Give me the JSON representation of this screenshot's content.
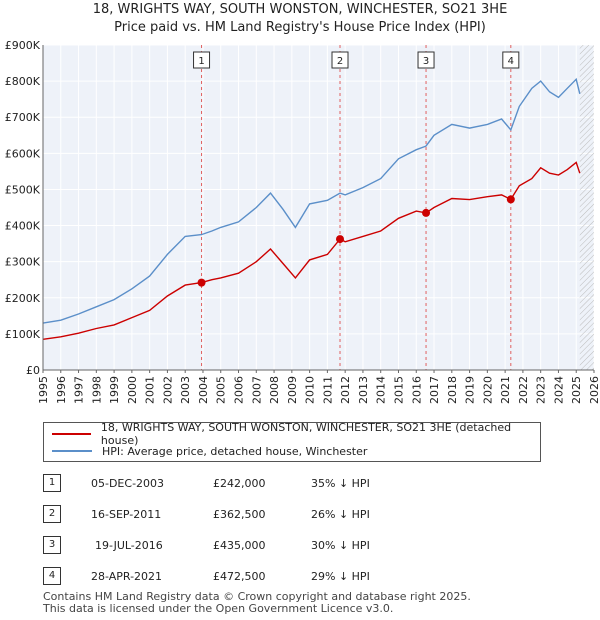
{
  "chart_data": {
    "type": "line",
    "title": "18, WRIGHTS WAY, SOUTH WONSTON, WINCHESTER, SO21 3HE",
    "subtitle": "Price paid vs. HM Land Registry's House Price Index (HPI)",
    "xlabel": "",
    "ylabel": "",
    "xlim": [
      1995,
      2026
    ],
    "ylim": [
      0,
      900000
    ],
    "y_ticks": [
      0,
      100000,
      200000,
      300000,
      400000,
      500000,
      600000,
      700000,
      800000,
      900000
    ],
    "y_tick_labels": [
      "£0",
      "£100K",
      "£200K",
      "£300K",
      "£400K",
      "£500K",
      "£600K",
      "£700K",
      "£800K",
      "£900K"
    ],
    "x_ticks": [
      1995,
      1996,
      1997,
      1998,
      1999,
      2000,
      2001,
      2002,
      2003,
      2004,
      2005,
      2006,
      2007,
      2008,
      2009,
      2010,
      2011,
      2012,
      2013,
      2014,
      2015,
      2016,
      2017,
      2018,
      2019,
      2020,
      2021,
      2022,
      2023,
      2024,
      2025,
      2026
    ],
    "grid": true,
    "legend_position": "below",
    "series": [
      {
        "name": "18, WRIGHTS WAY, SOUTH WONSTON, WINCHESTER, SO21 3HE (detached house)",
        "color": "#cc0000",
        "x": [
          1995.0,
          1996.0,
          1997.0,
          1998.0,
          1999.0,
          2000.0,
          2001.0,
          2002.0,
          2003.0,
          2003.92,
          2004.5,
          2005.0,
          2006.0,
          2007.0,
          2007.8,
          2008.5,
          2009.2,
          2010.0,
          2011.0,
          2011.71,
          2012.0,
          2013.0,
          2014.0,
          2015.0,
          2016.0,
          2016.55,
          2017.0,
          2018.0,
          2019.0,
          2020.0,
          2020.8,
          2021.32,
          2021.8,
          2022.5,
          2023.0,
          2023.5,
          2024.0,
          2024.5,
          2025.0,
          2025.2
        ],
        "values": [
          85000,
          92000,
          102000,
          115000,
          125000,
          145000,
          165000,
          205000,
          235000,
          242000,
          250000,
          255000,
          268000,
          300000,
          335000,
          295000,
          255000,
          305000,
          320000,
          362500,
          355000,
          370000,
          385000,
          420000,
          440000,
          435000,
          450000,
          475000,
          472000,
          480000,
          485000,
          472500,
          510000,
          530000,
          560000,
          545000,
          540000,
          555000,
          575000,
          545000
        ]
      },
      {
        "name": "HPI: Average price, detached house, Winchester",
        "color": "#5b8fc9",
        "x": [
          1995.0,
          1996.0,
          1997.0,
          1998.0,
          1999.0,
          2000.0,
          2001.0,
          2002.0,
          2003.0,
          2003.92,
          2004.5,
          2005.0,
          2006.0,
          2007.0,
          2007.8,
          2008.5,
          2009.2,
          2010.0,
          2011.0,
          2011.71,
          2012.0,
          2013.0,
          2014.0,
          2015.0,
          2016.0,
          2016.55,
          2017.0,
          2018.0,
          2019.0,
          2020.0,
          2020.8,
          2021.32,
          2021.8,
          2022.5,
          2023.0,
          2023.5,
          2024.0,
          2024.5,
          2025.0,
          2025.2
        ],
        "values": [
          130000,
          138000,
          155000,
          175000,
          195000,
          225000,
          260000,
          320000,
          370000,
          375000,
          385000,
          395000,
          410000,
          450000,
          490000,
          445000,
          395000,
          460000,
          470000,
          490000,
          485000,
          505000,
          530000,
          585000,
          610000,
          620000,
          650000,
          680000,
          670000,
          680000,
          695000,
          665000,
          730000,
          780000,
          800000,
          770000,
          755000,
          780000,
          805000,
          765000
        ]
      }
    ],
    "markers": [
      {
        "label": "1",
        "x": 2003.92,
        "value": 242000
      },
      {
        "label": "2",
        "x": 2011.71,
        "value": 362500
      },
      {
        "label": "3",
        "x": 2016.55,
        "value": 435000
      },
      {
        "label": "4",
        "x": 2021.32,
        "value": 472500
      }
    ]
  },
  "legend": {
    "property_label": "18, WRIGHTS WAY, SOUTH WONSTON, WINCHESTER, SO21 3HE (detached house)",
    "hpi_label": "HPI: Average price, detached house, Winchester"
  },
  "sales": [
    {
      "num": "1",
      "date": "05-DEC-2003",
      "price": "£242,000",
      "hpi": "35% ↓ HPI"
    },
    {
      "num": "2",
      "date": "16-SEP-2011",
      "price": "£362,500",
      "hpi": "26% ↓ HPI"
    },
    {
      "num": "3",
      "date": "19-JUL-2016",
      "price": "£435,000",
      "hpi": "30% ↓ HPI"
    },
    {
      "num": "4",
      "date": "28-APR-2021",
      "price": "£472,500",
      "hpi": "29% ↓ HPI"
    }
  ],
  "footer": {
    "line1": "Contains HM Land Registry data © Crown copyright and database right 2025.",
    "line2": "This data is licensed under the Open Government Licence v3.0."
  }
}
